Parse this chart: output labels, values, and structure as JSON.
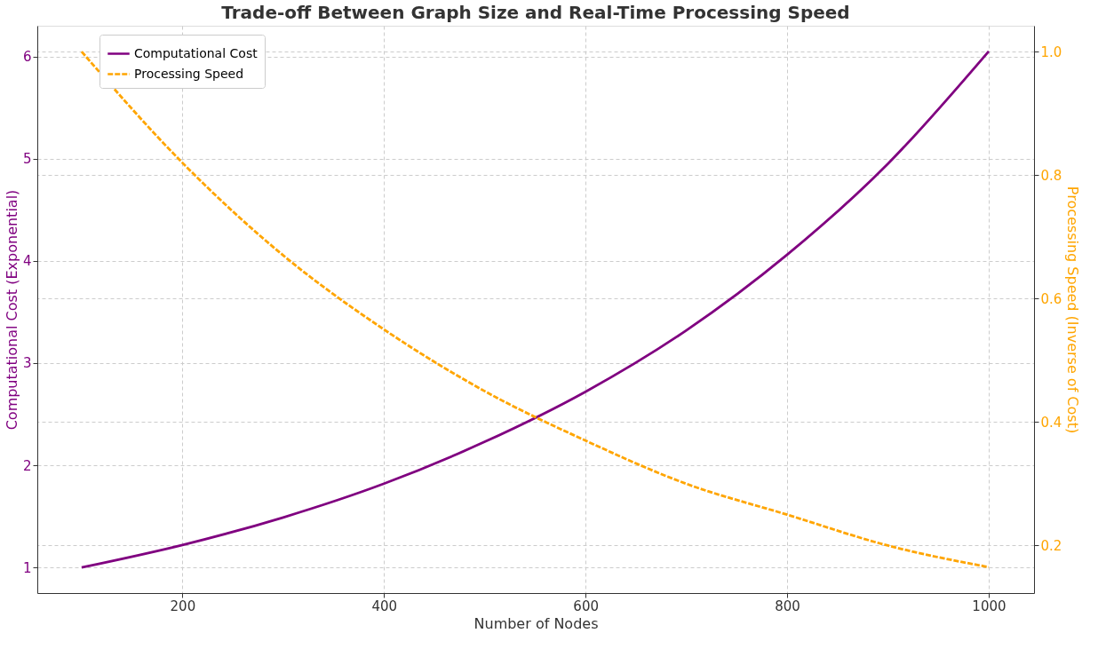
{
  "chart_data": {
    "type": "line",
    "title": "Trade-off Between Graph Size and Real-Time Processing Speed",
    "xlabel": "Number of Nodes",
    "ylabel": "Computational Cost (Exponential)",
    "y2label": "Processing Speed (Inverse of Cost)",
    "x": [
      100,
      200,
      300,
      400,
      500,
      600,
      700,
      800,
      900,
      1000
    ],
    "series": [
      {
        "name": "Computational Cost",
        "color": "#800080",
        "line_style": "solid",
        "values": [
          1.0,
          1.22,
          1.49,
          1.82,
          2.23,
          2.72,
          3.32,
          4.06,
          4.95,
          6.05
        ]
      },
      {
        "name": "Processing Speed",
        "color": "#ffa500",
        "line_style": "dashed",
        "axis": "y2",
        "values": [
          1.0,
          0.82,
          0.67,
          0.55,
          0.45,
          0.37,
          0.3,
          0.25,
          0.2,
          0.165
        ]
      }
    ],
    "xlim": [
      56,
      1045
    ],
    "xticks": [
      200,
      400,
      600,
      800,
      1000
    ],
    "ylim": [
      0.75,
      6.3
    ],
    "yticks": [
      1,
      2,
      3,
      4,
      5,
      6
    ],
    "y2lim": [
      0.123,
      1.042
    ],
    "y2ticks": [
      0.2,
      0.4,
      0.6,
      0.8,
      {
        "value": 1.0,
        "label": "1.0"
      }
    ],
    "grid": true,
    "legend": "top left",
    "marker": "none"
  }
}
